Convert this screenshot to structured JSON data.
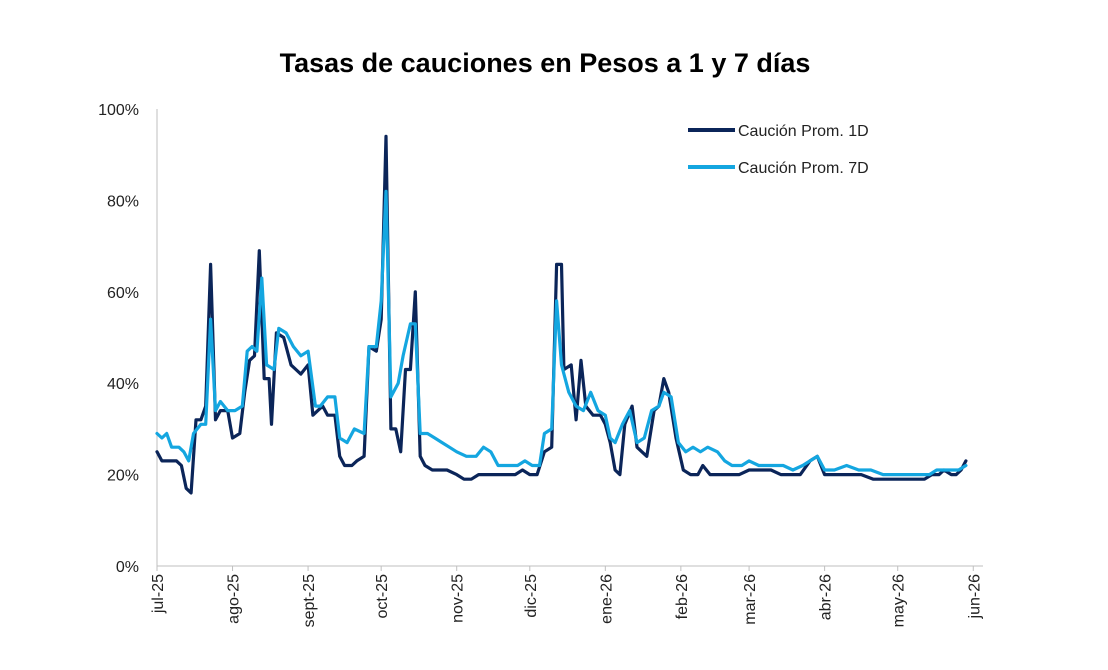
{
  "chart_data": {
    "type": "line",
    "title": "Tasas de cauciones en Pesos a 1 y 7 días",
    "xlabel": "",
    "ylabel": "",
    "ylim": [
      0,
      100
    ],
    "y_ticks": [
      "0%",
      "20%",
      "40%",
      "60%",
      "80%",
      "100%"
    ],
    "x_ticks": [
      "jul-25",
      "ago-25",
      "sept-25",
      "oct-25",
      "nov-25",
      "dic-25",
      "ene-26",
      "feb-26",
      "mar-26",
      "abr-26",
      "may-26",
      "jun-26"
    ],
    "legend_position": "top-right",
    "grid": false,
    "series": [
      {
        "name": "Caución Prom. 1D",
        "color": "#0b2559",
        "points": [
          [
            "2025-07-01",
            25
          ],
          [
            "2025-07-03",
            23
          ],
          [
            "2025-07-06",
            23
          ],
          [
            "2025-07-09",
            23
          ],
          [
            "2025-07-11",
            22
          ],
          [
            "2025-07-13",
            17
          ],
          [
            "2025-07-15",
            16
          ],
          [
            "2025-07-17",
            32
          ],
          [
            "2025-07-19",
            32
          ],
          [
            "2025-07-21",
            35
          ],
          [
            "2025-07-23",
            66
          ],
          [
            "2025-07-25",
            32
          ],
          [
            "2025-07-27",
            34
          ],
          [
            "2025-07-30",
            34
          ],
          [
            "2025-08-01",
            28
          ],
          [
            "2025-08-04",
            29
          ],
          [
            "2025-08-06",
            38
          ],
          [
            "2025-08-08",
            45
          ],
          [
            "2025-08-10",
            46
          ],
          [
            "2025-08-12",
            69
          ],
          [
            "2025-08-14",
            41
          ],
          [
            "2025-08-16",
            41
          ],
          [
            "2025-08-17",
            31
          ],
          [
            "2025-08-19",
            51
          ],
          [
            "2025-08-22",
            50
          ],
          [
            "2025-08-25",
            44
          ],
          [
            "2025-08-27",
            43
          ],
          [
            "2025-08-29",
            42
          ],
          [
            "2025-09-01",
            44
          ],
          [
            "2025-09-03",
            33
          ],
          [
            "2025-09-05",
            34
          ],
          [
            "2025-09-07",
            35
          ],
          [
            "2025-09-09",
            33
          ],
          [
            "2025-09-12",
            33
          ],
          [
            "2025-09-14",
            24
          ],
          [
            "2025-09-16",
            22
          ],
          [
            "2025-09-19",
            22
          ],
          [
            "2025-09-21",
            23
          ],
          [
            "2025-09-24",
            24
          ],
          [
            "2025-09-26",
            48
          ],
          [
            "2025-09-29",
            47
          ],
          [
            "2025-10-01",
            54
          ],
          [
            "2025-10-03",
            94
          ],
          [
            "2025-10-05",
            30
          ],
          [
            "2025-10-07",
            30
          ],
          [
            "2025-10-09",
            25
          ],
          [
            "2025-10-11",
            43
          ],
          [
            "2025-10-13",
            43
          ],
          [
            "2025-10-15",
            60
          ],
          [
            "2025-10-17",
            24
          ],
          [
            "2025-10-19",
            22
          ],
          [
            "2025-10-22",
            21
          ],
          [
            "2025-10-25",
            21
          ],
          [
            "2025-10-28",
            21
          ],
          [
            "2025-11-01",
            20
          ],
          [
            "2025-11-04",
            19
          ],
          [
            "2025-11-07",
            19
          ],
          [
            "2025-11-10",
            20
          ],
          [
            "2025-11-14",
            20
          ],
          [
            "2025-11-17",
            20
          ],
          [
            "2025-11-21",
            20
          ],
          [
            "2025-11-25",
            20
          ],
          [
            "2025-11-28",
            21
          ],
          [
            "2025-12-01",
            20
          ],
          [
            "2025-12-04",
            20
          ],
          [
            "2025-12-07",
            25
          ],
          [
            "2025-12-10",
            26
          ],
          [
            "2025-12-12",
            66
          ],
          [
            "2025-12-14",
            66
          ],
          [
            "2025-12-15",
            43
          ],
          [
            "2025-12-18",
            44
          ],
          [
            "2025-12-20",
            32
          ],
          [
            "2025-12-22",
            45
          ],
          [
            "2025-12-24",
            35
          ],
          [
            "2025-12-27",
            33
          ],
          [
            "2025-12-30",
            33
          ],
          [
            "2026-01-01",
            31
          ],
          [
            "2026-01-03",
            27
          ],
          [
            "2026-01-05",
            21
          ],
          [
            "2026-01-07",
            20
          ],
          [
            "2026-01-09",
            31
          ],
          [
            "2026-01-12",
            35
          ],
          [
            "2026-01-14",
            26
          ],
          [
            "2026-01-16",
            25
          ],
          [
            "2026-01-18",
            24
          ],
          [
            "2026-01-21",
            34
          ],
          [
            "2026-01-23",
            35
          ],
          [
            "2026-01-25",
            41
          ],
          [
            "2026-01-27",
            38
          ],
          [
            "2026-01-30",
            28
          ],
          [
            "2026-02-02",
            21
          ],
          [
            "2026-02-05",
            20
          ],
          [
            "2026-02-08",
            20
          ],
          [
            "2026-02-10",
            22
          ],
          [
            "2026-02-13",
            20
          ],
          [
            "2026-02-17",
            20
          ],
          [
            "2026-02-21",
            20
          ],
          [
            "2026-02-25",
            20
          ],
          [
            "2026-03-01",
            21
          ],
          [
            "2026-03-05",
            21
          ],
          [
            "2026-03-10",
            21
          ],
          [
            "2026-03-14",
            20
          ],
          [
            "2026-03-18",
            20
          ],
          [
            "2026-03-22",
            20
          ],
          [
            "2026-03-26",
            23
          ],
          [
            "2026-03-29",
            24
          ],
          [
            "2026-04-01",
            20
          ],
          [
            "2026-04-06",
            20
          ],
          [
            "2026-04-11",
            20
          ],
          [
            "2026-04-16",
            20
          ],
          [
            "2026-04-21",
            19
          ],
          [
            "2026-04-26",
            19
          ],
          [
            "2026-05-01",
            19
          ],
          [
            "2026-05-06",
            19
          ],
          [
            "2026-05-09",
            19
          ],
          [
            "2026-05-12",
            19
          ],
          [
            "2026-05-15",
            20
          ],
          [
            "2026-05-18",
            20
          ],
          [
            "2026-05-20",
            21
          ],
          [
            "2026-05-23",
            20
          ],
          [
            "2026-05-25",
            20
          ],
          [
            "2026-05-27",
            21
          ],
          [
            "2026-05-29",
            23
          ]
        ]
      },
      {
        "name": "Caución Prom. 7D",
        "color": "#14a6e0",
        "points": [
          [
            "2025-07-01",
            29
          ],
          [
            "2025-07-03",
            28
          ],
          [
            "2025-07-05",
            29
          ],
          [
            "2025-07-07",
            26
          ],
          [
            "2025-07-10",
            26
          ],
          [
            "2025-07-12",
            25
          ],
          [
            "2025-07-14",
            23
          ],
          [
            "2025-07-16",
            29
          ],
          [
            "2025-07-19",
            31
          ],
          [
            "2025-07-21",
            31
          ],
          [
            "2025-07-23",
            54
          ],
          [
            "2025-07-25",
            34
          ],
          [
            "2025-07-27",
            36
          ],
          [
            "2025-07-30",
            34
          ],
          [
            "2025-08-02",
            34
          ],
          [
            "2025-08-05",
            35
          ],
          [
            "2025-08-07",
            47
          ],
          [
            "2025-08-09",
            48
          ],
          [
            "2025-08-11",
            47
          ],
          [
            "2025-08-13",
            63
          ],
          [
            "2025-08-15",
            44
          ],
          [
            "2025-08-18",
            43
          ],
          [
            "2025-08-20",
            52
          ],
          [
            "2025-08-23",
            51
          ],
          [
            "2025-08-26",
            48
          ],
          [
            "2025-08-29",
            46
          ],
          [
            "2025-09-01",
            47
          ],
          [
            "2025-09-04",
            35
          ],
          [
            "2025-09-06",
            35
          ],
          [
            "2025-09-09",
            37
          ],
          [
            "2025-09-12",
            37
          ],
          [
            "2025-09-14",
            28
          ],
          [
            "2025-09-17",
            27
          ],
          [
            "2025-09-20",
            30
          ],
          [
            "2025-09-24",
            29
          ],
          [
            "2025-09-26",
            48
          ],
          [
            "2025-09-29",
            48
          ],
          [
            "2025-10-01",
            58
          ],
          [
            "2025-10-03",
            82
          ],
          [
            "2025-10-05",
            37
          ],
          [
            "2025-10-08",
            40
          ],
          [
            "2025-10-10",
            46
          ],
          [
            "2025-10-13",
            53
          ],
          [
            "2025-10-15",
            53
          ],
          [
            "2025-10-17",
            29
          ],
          [
            "2025-10-20",
            29
          ],
          [
            "2025-10-23",
            28
          ],
          [
            "2025-10-26",
            27
          ],
          [
            "2025-10-29",
            26
          ],
          [
            "2025-11-01",
            25
          ],
          [
            "2025-11-05",
            24
          ],
          [
            "2025-11-09",
            24
          ],
          [
            "2025-11-12",
            26
          ],
          [
            "2025-11-15",
            25
          ],
          [
            "2025-11-18",
            22
          ],
          [
            "2025-11-22",
            22
          ],
          [
            "2025-11-26",
            22
          ],
          [
            "2025-11-29",
            23
          ],
          [
            "2025-12-02",
            22
          ],
          [
            "2025-12-05",
            22
          ],
          [
            "2025-12-07",
            29
          ],
          [
            "2025-12-10",
            30
          ],
          [
            "2025-12-12",
            58
          ],
          [
            "2025-12-14",
            44
          ],
          [
            "2025-12-17",
            38
          ],
          [
            "2025-12-20",
            35
          ],
          [
            "2025-12-23",
            34
          ],
          [
            "2025-12-26",
            38
          ],
          [
            "2025-12-29",
            34
          ],
          [
            "2026-01-01",
            33
          ],
          [
            "2026-01-03",
            28
          ],
          [
            "2026-01-05",
            27
          ],
          [
            "2026-01-08",
            31
          ],
          [
            "2026-01-11",
            34
          ],
          [
            "2026-01-14",
            27
          ],
          [
            "2026-01-17",
            28
          ],
          [
            "2026-01-20",
            34
          ],
          [
            "2026-01-23",
            35
          ],
          [
            "2026-01-25",
            38
          ],
          [
            "2026-01-28",
            37
          ],
          [
            "2026-01-31",
            27
          ],
          [
            "2026-02-03",
            25
          ],
          [
            "2026-02-06",
            26
          ],
          [
            "2026-02-09",
            25
          ],
          [
            "2026-02-12",
            26
          ],
          [
            "2026-02-16",
            25
          ],
          [
            "2026-02-19",
            23
          ],
          [
            "2026-02-22",
            22
          ],
          [
            "2026-02-26",
            22
          ],
          [
            "2026-03-01",
            23
          ],
          [
            "2026-03-05",
            22
          ],
          [
            "2026-03-10",
            22
          ],
          [
            "2026-03-15",
            22
          ],
          [
            "2026-03-19",
            21
          ],
          [
            "2026-03-23",
            22
          ],
          [
            "2026-03-26",
            23
          ],
          [
            "2026-03-29",
            24
          ],
          [
            "2026-04-01",
            21
          ],
          [
            "2026-04-05",
            21
          ],
          [
            "2026-04-10",
            22
          ],
          [
            "2026-04-15",
            21
          ],
          [
            "2026-04-20",
            21
          ],
          [
            "2026-04-25",
            20
          ],
          [
            "2026-04-30",
            20
          ],
          [
            "2026-05-04",
            20
          ],
          [
            "2026-05-08",
            20
          ],
          [
            "2026-05-11",
            20
          ],
          [
            "2026-05-14",
            20
          ],
          [
            "2026-05-17",
            21
          ],
          [
            "2026-05-20",
            21
          ],
          [
            "2026-05-23",
            21
          ],
          [
            "2026-05-26",
            21
          ],
          [
            "2026-05-29",
            22
          ]
        ]
      }
    ]
  }
}
